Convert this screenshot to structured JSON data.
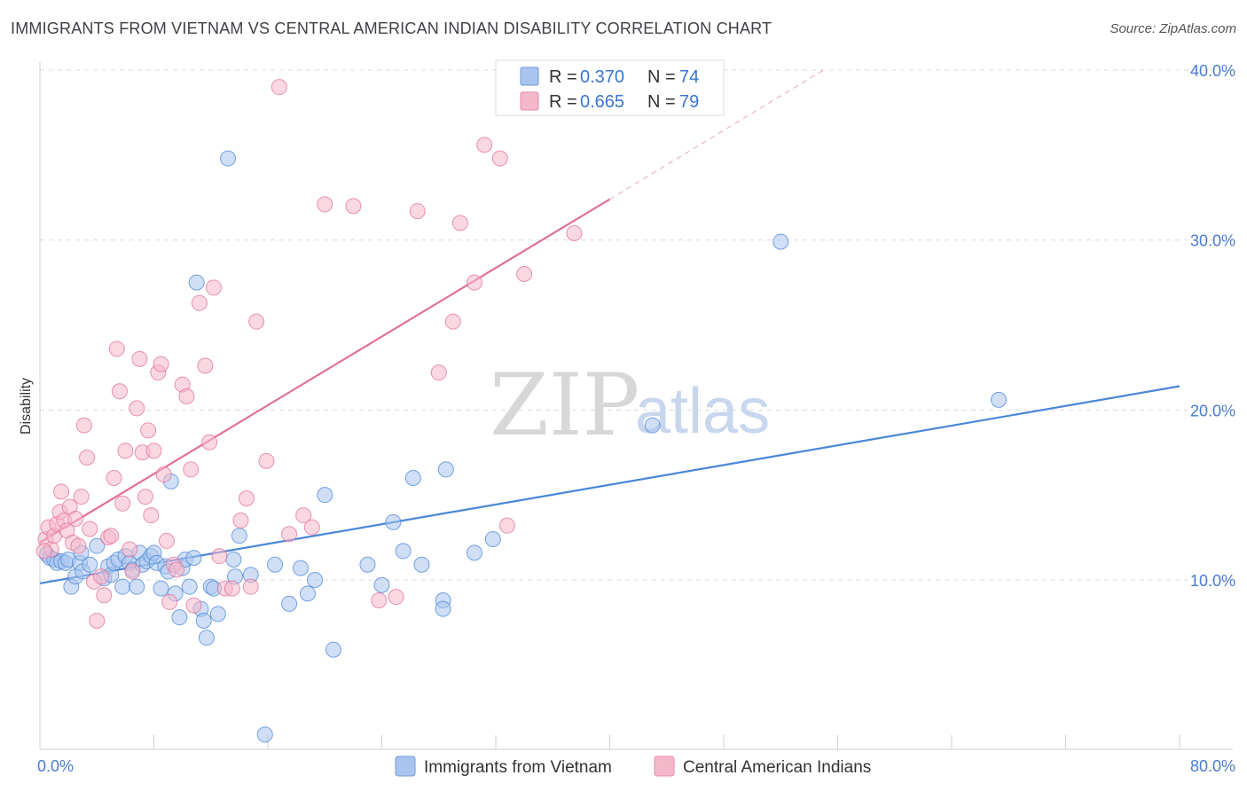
{
  "header": {
    "title": "IMMIGRANTS FROM VIETNAM VS CENTRAL AMERICAN INDIAN DISABILITY CORRELATION CHART",
    "source": "Source: ZipAtlas.com"
  },
  "watermark": {
    "zip": "ZIP",
    "atlas": "atlas"
  },
  "legend": {
    "rows": [
      {
        "r_label": "R = ",
        "r_value": "0.370",
        "n_label": "N = ",
        "n_value": "74",
        "color": "#a9c4ee"
      },
      {
        "r_label": "R = ",
        "r_value": "0.665",
        "n_label": "N = ",
        "n_value": "79",
        "color": "#f5b8cb"
      }
    ]
  },
  "bottom_legend": [
    {
      "label": "Immigrants from Vietnam",
      "color": "#a9c4ee"
    },
    {
      "label": "Central American Indians",
      "color": "#f5b8cb"
    }
  ],
  "chart_data": {
    "type": "scatter",
    "title": "IMMIGRANTS FROM VIETNAM VS CENTRAL AMERICAN INDIAN DISABILITY CORRELATION CHART",
    "xlabel": "",
    "ylabel": "Disability",
    "xlim": [
      0,
      80
    ],
    "ylim": [
      0,
      41
    ],
    "x_tick_labels": [
      "0.0%",
      "80.0%"
    ],
    "y_ticks": [
      10,
      20,
      30,
      40
    ],
    "y_tick_labels": [
      "10.0%",
      "20.0%",
      "30.0%",
      "40.0%"
    ],
    "grid": true,
    "legend_position": "top-center",
    "series": [
      {
        "name": "Immigrants from Vietnam",
        "color": "#4a86d8",
        "fill": "#a9c4ee",
        "r": 0.37,
        "n": 74,
        "trend": {
          "x": [
            0,
            80
          ],
          "y": [
            9.8,
            21.4
          ]
        },
        "points": [
          [
            0.5,
            11.5
          ],
          [
            0.7,
            11.3
          ],
          [
            1.0,
            11.2
          ],
          [
            1.2,
            11.0
          ],
          [
            1.5,
            11.1
          ],
          [
            1.8,
            11.0
          ],
          [
            2.0,
            11.2
          ],
          [
            2.2,
            9.6
          ],
          [
            2.5,
            10.2
          ],
          [
            2.8,
            11.0
          ],
          [
            3.0,
            10.5
          ],
          [
            3.5,
            10.9
          ],
          [
            4.0,
            12.0
          ],
          [
            4.5,
            10.1
          ],
          [
            4.8,
            10.8
          ],
          [
            5.0,
            10.3
          ],
          [
            5.2,
            11.0
          ],
          [
            5.5,
            11.2
          ],
          [
            5.8,
            9.6
          ],
          [
            6.0,
            11.4
          ],
          [
            6.3,
            11.0
          ],
          [
            6.5,
            10.6
          ],
          [
            6.8,
            9.6
          ],
          [
            7.0,
            11.6
          ],
          [
            7.2,
            10.9
          ],
          [
            7.5,
            11.1
          ],
          [
            7.8,
            11.4
          ],
          [
            8.0,
            11.6
          ],
          [
            8.2,
            11.0
          ],
          [
            8.5,
            9.5
          ],
          [
            8.8,
            10.8
          ],
          [
            9.0,
            10.5
          ],
          [
            9.2,
            15.8
          ],
          [
            9.5,
            9.2
          ],
          [
            9.8,
            7.8
          ],
          [
            10.0,
            10.7
          ],
          [
            10.2,
            11.2
          ],
          [
            10.5,
            9.6
          ],
          [
            10.8,
            11.3
          ],
          [
            11.0,
            27.5
          ],
          [
            11.3,
            8.3
          ],
          [
            11.5,
            7.6
          ],
          [
            11.7,
            6.6
          ],
          [
            12.0,
            9.6
          ],
          [
            12.5,
            8.0
          ],
          [
            13.2,
            34.8
          ],
          [
            13.6,
            11.2
          ],
          [
            13.7,
            10.2
          ],
          [
            14.0,
            12.6
          ],
          [
            14.8,
            10.3
          ],
          [
            15.8,
            0.9
          ],
          [
            16.5,
            10.9
          ],
          [
            17.5,
            8.6
          ],
          [
            18.3,
            10.7
          ],
          [
            18.8,
            9.2
          ],
          [
            19.3,
            10.0
          ],
          [
            20.0,
            15.0
          ],
          [
            20.6,
            5.9
          ],
          [
            23.0,
            10.9
          ],
          [
            24.0,
            9.7
          ],
          [
            24.8,
            13.4
          ],
          [
            25.5,
            11.7
          ],
          [
            26.2,
            16.0
          ],
          [
            26.8,
            10.9
          ],
          [
            28.3,
            8.8
          ],
          [
            28.3,
            8.3
          ],
          [
            28.5,
            16.5
          ],
          [
            30.5,
            11.6
          ],
          [
            31.8,
            12.4
          ],
          [
            43.0,
            19.1
          ],
          [
            52.0,
            29.9
          ],
          [
            67.3,
            20.6
          ],
          [
            12.2,
            9.5
          ],
          [
            2.9,
            11.6
          ]
        ]
      },
      {
        "name": "Central American Indians",
        "color": "#e0709a",
        "fill": "#f5b8cb",
        "r": 0.665,
        "n": 79,
        "trend": {
          "x": [
            0,
            40
          ],
          "y": [
            12.2,
            32.4
          ]
        },
        "trend_dashed": {
          "x": [
            40,
            55
          ],
          "y": [
            32.4,
            40.0
          ]
        },
        "points": [
          [
            0.4,
            12.4
          ],
          [
            0.6,
            13.1
          ],
          [
            0.8,
            11.8
          ],
          [
            1.0,
            12.6
          ],
          [
            1.2,
            13.3
          ],
          [
            1.4,
            14.0
          ],
          [
            1.5,
            15.2
          ],
          [
            1.7,
            13.5
          ],
          [
            1.9,
            12.9
          ],
          [
            2.1,
            14.3
          ],
          [
            2.3,
            12.2
          ],
          [
            2.5,
            13.6
          ],
          [
            2.7,
            12.0
          ],
          [
            2.9,
            14.9
          ],
          [
            3.1,
            19.1
          ],
          [
            3.3,
            17.2
          ],
          [
            3.5,
            13.0
          ],
          [
            3.8,
            9.9
          ],
          [
            4.0,
            7.6
          ],
          [
            4.3,
            10.2
          ],
          [
            4.5,
            9.1
          ],
          [
            4.8,
            12.5
          ],
          [
            5.0,
            12.6
          ],
          [
            5.2,
            16.0
          ],
          [
            5.4,
            23.6
          ],
          [
            5.6,
            21.1
          ],
          [
            5.8,
            14.5
          ],
          [
            6.0,
            17.6
          ],
          [
            6.3,
            11.8
          ],
          [
            6.5,
            10.5
          ],
          [
            6.8,
            20.1
          ],
          [
            7.0,
            23.0
          ],
          [
            7.2,
            17.5
          ],
          [
            7.4,
            14.9
          ],
          [
            7.6,
            18.8
          ],
          [
            7.8,
            13.8
          ],
          [
            8.0,
            17.6
          ],
          [
            8.3,
            22.2
          ],
          [
            8.5,
            22.7
          ],
          [
            8.7,
            16.2
          ],
          [
            8.9,
            12.3
          ],
          [
            9.1,
            8.7
          ],
          [
            9.4,
            10.9
          ],
          [
            9.6,
            10.6
          ],
          [
            10.0,
            21.5
          ],
          [
            10.3,
            20.8
          ],
          [
            10.6,
            16.5
          ],
          [
            10.8,
            8.5
          ],
          [
            11.2,
            26.3
          ],
          [
            11.6,
            22.6
          ],
          [
            11.9,
            18.1
          ],
          [
            12.2,
            27.2
          ],
          [
            12.6,
            11.4
          ],
          [
            13.0,
            9.5
          ],
          [
            13.5,
            9.5
          ],
          [
            14.1,
            13.5
          ],
          [
            14.5,
            14.8
          ],
          [
            14.8,
            9.6
          ],
          [
            15.2,
            25.2
          ],
          [
            15.9,
            17.0
          ],
          [
            16.8,
            39.0
          ],
          [
            17.5,
            12.7
          ],
          [
            18.5,
            13.8
          ],
          [
            19.1,
            13.1
          ],
          [
            20.0,
            32.1
          ],
          [
            22.0,
            32.0
          ],
          [
            23.8,
            8.8
          ],
          [
            25.0,
            9.0
          ],
          [
            26.5,
            31.7
          ],
          [
            28.0,
            22.2
          ],
          [
            29.0,
            25.2
          ],
          [
            29.5,
            31.0
          ],
          [
            30.5,
            27.5
          ],
          [
            31.2,
            35.6
          ],
          [
            32.3,
            34.8
          ],
          [
            32.8,
            13.2
          ],
          [
            34.0,
            28.0
          ],
          [
            37.5,
            30.4
          ],
          [
            0.3,
            11.7
          ]
        ]
      }
    ]
  }
}
